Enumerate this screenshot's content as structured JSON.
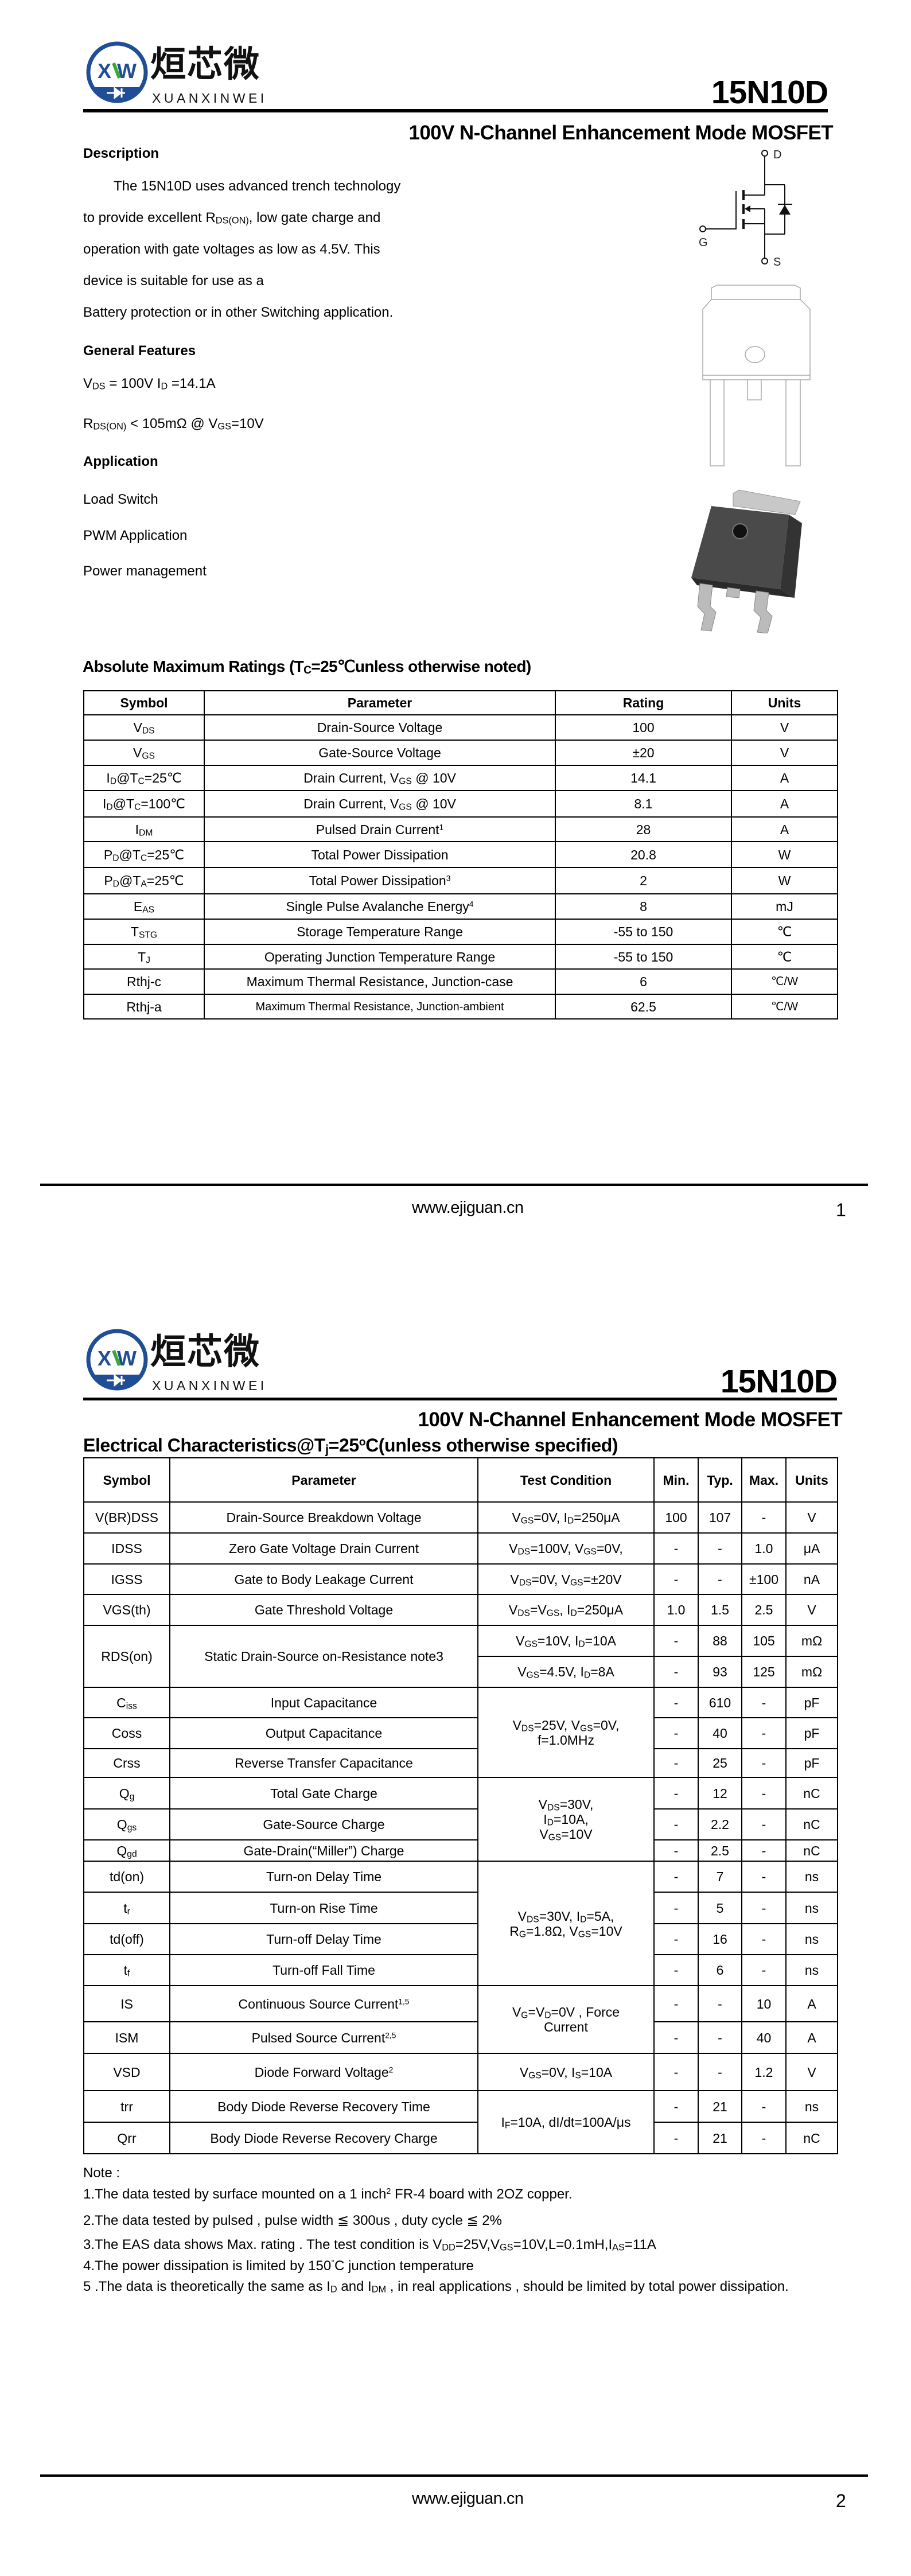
{
  "logo": {
    "cn": "烜芯微",
    "en": "XUANXINWEI",
    "mark": "XW",
    "blue": "#1f4e96",
    "green": "#3aa935"
  },
  "part_number": "15N10D",
  "subtitle": "100V N-Channel Enhancement Mode MOSFET",
  "page1": {
    "description": {
      "heading": "Description",
      "lines": [
        [
          "The 15N10D uses advanced trench technology"
        ],
        [
          "to provide excellent R",
          {
            "sub": "DS(ON)"
          },
          ", low gate charge and"
        ],
        [
          "operation with gate voltages as low as 4.5V. This"
        ],
        [
          "device is suitable for use as a"
        ],
        [
          "Battery protection or in other Switching application."
        ]
      ]
    },
    "features": {
      "heading": "General Features",
      "lines": [
        [
          "V",
          {
            "sub": "DS"
          },
          " = 100V  I",
          {
            "sub": "D"
          },
          " =14.1A"
        ],
        [
          "R",
          {
            "sub": "DS(ON)"
          },
          " < 105mΩ @ V",
          {
            "sub": "GS"
          },
          "=10V"
        ]
      ]
    },
    "application": {
      "heading": "Application",
      "items": [
        "Load Switch",
        "PWM Application",
        "Power management"
      ]
    },
    "schematic_labels": {
      "d": "D",
      "g": "G",
      "s": "S"
    },
    "abs_max": {
      "heading": [
        "Absolute Maximum Ratings (T",
        {
          "sub": "C"
        },
        "=25℃unless otherwise noted)"
      ],
      "headers": [
        "Symbol",
        "Parameter",
        "Rating",
        "Units"
      ],
      "rows": [
        {
          "sym": [
            "V",
            {
              "sub": "DS"
            }
          ],
          "param": [
            "Drain-Source Voltage"
          ],
          "rating": "100",
          "unit": "V"
        },
        {
          "sym": [
            "V",
            {
              "sub": "GS"
            }
          ],
          "param": [
            "Gate-Source Voltage"
          ],
          "rating": "±20",
          "unit": "V"
        },
        {
          "sym": [
            "I",
            {
              "sub": "D"
            },
            "@T",
            {
              "sub": "C"
            },
            "=25℃"
          ],
          "param": [
            "Drain Current, V",
            {
              "sub": "GS"
            },
            " @ 10V"
          ],
          "rating": "14.1",
          "unit": "A"
        },
        {
          "sym": [
            "I",
            {
              "sub": "D"
            },
            "@T",
            {
              "sub": "C"
            },
            "=100℃"
          ],
          "param": [
            "Drain Current, V",
            {
              "sub": "GS"
            },
            " @ 10V"
          ],
          "rating": "8.1",
          "unit": "A"
        },
        {
          "sym": [
            "I",
            {
              "sub": "DM"
            }
          ],
          "param": [
            "Pulsed Drain Current",
            {
              "sup": "1"
            }
          ],
          "rating": "28",
          "unit": "A"
        },
        {
          "sym": [
            "P",
            {
              "sub": "D"
            },
            "@T",
            {
              "sub": "C"
            },
            "=25℃"
          ],
          "param": [
            "Total Power Dissipation"
          ],
          "rating": "20.8",
          "unit": "W"
        },
        {
          "sym": [
            "P",
            {
              "sub": "D"
            },
            "@T",
            {
              "sub": "A"
            },
            "=25℃"
          ],
          "param": [
            "Total Power Dissipation",
            {
              "sup": "3"
            }
          ],
          "rating": "2",
          "unit": "W"
        },
        {
          "sym": [
            "E",
            {
              "sub": "AS"
            }
          ],
          "param": [
            "Single Pulse Avalanche Energy",
            {
              "sup": "4"
            }
          ],
          "rating": "8",
          "unit": "mJ"
        },
        {
          "sym": [
            "T",
            {
              "sub": "STG"
            }
          ],
          "param": [
            "Storage Temperature Range"
          ],
          "rating": "-55 to 150",
          "unit": "℃"
        },
        {
          "sym": [
            "T",
            {
              "sub": "J"
            }
          ],
          "param": [
            "Operating Junction Temperature Range"
          ],
          "rating": "-55 to 150",
          "unit": "℃"
        },
        {
          "sym": [
            "Rthj-c"
          ],
          "param": [
            "Maximum Thermal Resistance, Junction-case"
          ],
          "rating": "6",
          "unit": "℃/W"
        },
        {
          "sym": [
            "Rthj-a"
          ],
          "param": [
            "Maximum Thermal Resistance, Junction-ambient"
          ],
          "rating": "62.5",
          "unit": "℃/W"
        }
      ]
    },
    "footer": {
      "url": "www.ejiguan.cn",
      "page": "1"
    }
  },
  "page2": {
    "elec": {
      "heading": [
        "Electrical Characteristics@T",
        {
          "sub": "j"
        },
        "=25",
        {
          "sup": "o"
        },
        "C(unless otherwise specified)"
      ],
      "headers": [
        "Symbol",
        "Parameter",
        "Test Condition",
        "Min.",
        "Typ.",
        "Max.",
        "Units"
      ],
      "rows": [
        {
          "sym": [
            "V(BR)DSS"
          ],
          "param": [
            "Drain-Source Breakdown Voltage"
          ],
          "cond": [
            "V",
            {
              "sub": "GS"
            },
            "=0V, I",
            {
              "sub": "D"
            },
            "=250μA"
          ],
          "min": "100",
          "typ": "107",
          "max": "-",
          "unit": "V"
        },
        {
          "sym": [
            "IDSS"
          ],
          "param": [
            "Zero Gate Voltage Drain Current"
          ],
          "cond": [
            "V",
            {
              "sub": "DS"
            },
            "=100V, V",
            {
              "sub": "GS"
            },
            "=0V,"
          ],
          "min": "-",
          "typ": "-",
          "max": "1.0",
          "unit": "μA"
        },
        {
          "sym": [
            "IGSS"
          ],
          "param": [
            "Gate to Body Leakage Current"
          ],
          "cond": [
            "V",
            {
              "sub": "DS"
            },
            "=0V, V",
            {
              "sub": "GS"
            },
            "=±20V"
          ],
          "min": "-",
          "typ": "-",
          "max": "±100",
          "unit": "nA"
        },
        {
          "sym": [
            "VGS(th)"
          ],
          "param": [
            "Gate Threshold Voltage"
          ],
          "cond": [
            "V",
            {
              "sub": "DS"
            },
            "=V",
            {
              "sub": "GS"
            },
            ", I",
            {
              "sub": "D"
            },
            "=250μA"
          ],
          "min": "1.0",
          "typ": "1.5",
          "max": "2.5",
          "unit": "V"
        },
        {
          "sym": [
            "RDS(on)"
          ],
          "sym_rows": 2,
          "param": [
            "Static Drain-Source on-Resistance note3"
          ],
          "cond": [
            "V",
            {
              "sub": "GS"
            },
            "=10V, I",
            {
              "sub": "D"
            },
            "=10A"
          ],
          "min": "-",
          "typ": "88",
          "max": "105",
          "unit": "mΩ"
        },
        {
          "cond": [
            "V",
            {
              "sub": "GS"
            },
            "=4.5V, I",
            {
              "sub": "D"
            },
            "=8A"
          ],
          "min": "-",
          "typ": "93",
          "max": "125",
          "unit": "mΩ"
        },
        {
          "sym": [
            "C",
            {
              "sub": "iss"
            }
          ],
          "param": [
            "Input Capacitance"
          ],
          "cond": [
            "V",
            {
              "sub": "DS"
            },
            "=25V, V",
            {
              "sub": "GS"
            },
            "=0V,\nf=1.0MHz"
          ],
          "cond_rows": 3,
          "min": "-",
          "typ": "610",
          "max": "-",
          "unit": "pF"
        },
        {
          "sym": [
            "Coss"
          ],
          "param": [
            "Output Capacitance"
          ],
          "min": "-",
          "typ": "40",
          "max": "-",
          "unit": "pF"
        },
        {
          "sym": [
            "Crss"
          ],
          "param": [
            "Reverse Transfer Capacitance"
          ],
          "min": "-",
          "typ": "25",
          "max": "-",
          "unit": "pF"
        },
        {
          "sym": [
            "Q",
            {
              "sub": "g"
            }
          ],
          "param": [
            "Total Gate Charge"
          ],
          "cond": [
            "V",
            {
              "sub": "DS"
            },
            "=30V,\nI",
            {
              "sub": "D"
            },
            "=10A,\nV",
            {
              "sub": "GS"
            },
            "=10V"
          ],
          "cond_rows": 3,
          "min": "-",
          "typ": "12",
          "max": "-",
          "unit": "nC"
        },
        {
          "sym": [
            "Q",
            {
              "sub": "gs"
            }
          ],
          "param": [
            "Gate-Source Charge"
          ],
          "min": "-",
          "typ": "2.2",
          "max": "-",
          "unit": "nC"
        },
        {
          "sym": [
            "Q",
            {
              "sub": "gd"
            }
          ],
          "param": [
            "Gate-Drain(“Miller”) Charge"
          ],
          "min": "-",
          "typ": "2.5",
          "max": "-",
          "unit": "nC"
        },
        {
          "sym": [
            "td(on)"
          ],
          "param": [
            "Turn-on Delay Time"
          ],
          "cond": [
            "V",
            {
              "sub": "DS"
            },
            "=30V, I",
            {
              "sub": "D"
            },
            "=5A,\nR",
            {
              "sub": "G"
            },
            "=1.8Ω, V",
            {
              "sub": "GS"
            },
            "=10V"
          ],
          "cond_rows": 4,
          "min": "-",
          "typ": "7",
          "max": "-",
          "unit": "ns"
        },
        {
          "sym": [
            "t",
            {
              "sub": "r"
            }
          ],
          "param": [
            "Turn-on Rise Time"
          ],
          "min": "-",
          "typ": "5",
          "max": "-",
          "unit": "ns"
        },
        {
          "sym": [
            "td(off)"
          ],
          "param": [
            "Turn-off Delay Time"
          ],
          "min": "-",
          "typ": "16",
          "max": "-",
          "unit": "ns"
        },
        {
          "sym": [
            "t",
            {
              "sub": "f"
            }
          ],
          "param": [
            "Turn-off Fall Time"
          ],
          "min": "-",
          "typ": "6",
          "max": "-",
          "unit": "ns"
        },
        {
          "sym": [
            "IS"
          ],
          "param": [
            "Continuous Source Current",
            {
              "sup": "1,5"
            }
          ],
          "cond": [
            "V",
            {
              "sub": "G"
            },
            "=V",
            {
              "sub": "D"
            },
            "=0V , Force\nCurrent"
          ],
          "cond_rows": 2,
          "min": "-",
          "typ": "-",
          "max": "10",
          "unit": "A"
        },
        {
          "sym": [
            "ISM"
          ],
          "param": [
            "Pulsed Source Current",
            {
              "sup": "2,5"
            }
          ],
          "min": "-",
          "typ": "-",
          "max": "40",
          "unit": "A"
        },
        {
          "sym": [
            "VSD"
          ],
          "param": [
            "Diode Forward Voltage",
            {
              "sup": "2"
            }
          ],
          "cond": [
            "V",
            {
              "sub": "GS"
            },
            "=0V, I",
            {
              "sub": "S"
            },
            "=10A"
          ],
          "min": "-",
          "typ": "-",
          "max": "1.2",
          "unit": "V"
        },
        {
          "sym": [
            "trr"
          ],
          "param": [
            "Body Diode Reverse Recovery Time"
          ],
          "cond": [
            "I",
            {
              "sub": "F"
            },
            "=10A, dI/dt=100A/μs"
          ],
          "cond_rows": 2,
          "min": "-",
          "typ": "21",
          "max": "-",
          "unit": "ns"
        },
        {
          "sym": [
            "Qrr"
          ],
          "param": [
            "Body Diode Reverse Recovery Charge"
          ],
          "min": "-",
          "typ": "21",
          "max": "-",
          "unit": "nC"
        }
      ]
    },
    "notes": {
      "title": "Note :",
      "items": [
        [
          "1.The data tested by surface mounted on a 1 inch",
          {
            "sup": "2"
          },
          " FR-4 board with 2OZ copper."
        ],
        [
          "2.The data tested by pulsed , pulse width ≦ 300us , duty cycle ≦ 2%"
        ],
        [
          "3.The EAS data shows Max. rating . The test condition is V",
          {
            "sub": "DD"
          },
          "=25V,V",
          {
            "sub": "GS"
          },
          "=10V,L=0.1mH,I",
          {
            "sub": "AS"
          },
          "=11A"
        ],
        [
          "4.The power dissipation is limited by 150",
          {
            "sup": "°"
          },
          "C junction temperature"
        ],
        [
          "5 .The data is theoretically the same as I",
          {
            "sub": "D"
          },
          " and I",
          {
            "sub": "DM"
          },
          " , in real applications , should be limited by total power dissipation."
        ]
      ]
    },
    "footer": {
      "url": "www.ejiguan.cn",
      "page": "2"
    }
  }
}
